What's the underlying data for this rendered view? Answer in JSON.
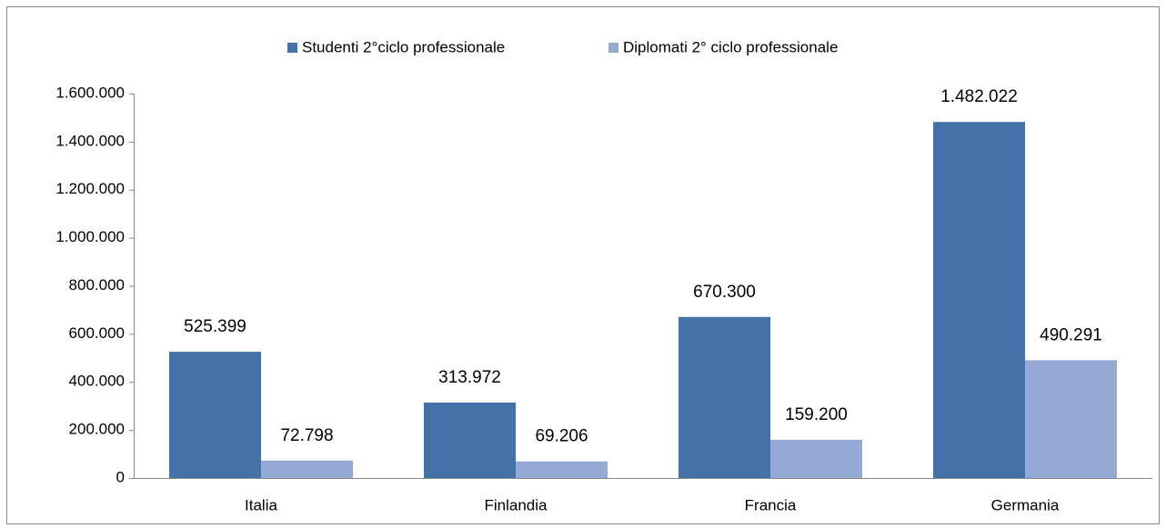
{
  "chart_data": {
    "type": "bar",
    "categories": [
      "Italia",
      "Finlandia",
      "Francia",
      "Germania"
    ],
    "series": [
      {
        "name": "Studenti 2°ciclo professionale",
        "color": "#4472a8",
        "values": [
          525399,
          313972,
          670300,
          1482022
        ],
        "value_labels": [
          "525.399",
          "313.972",
          "670.300",
          "1.482.022"
        ]
      },
      {
        "name": "Diplomati 2° ciclo professionale",
        "color": "#94aad4",
        "values": [
          72798,
          69206,
          159200,
          490291
        ],
        "value_labels": [
          "72.798",
          "69.206",
          "159.200",
          "490.291"
        ]
      }
    ],
    "ylim": [
      0,
      1600000
    ],
    "yticks": [
      0,
      {
        "value": 200000,
        "label": "200.000"
      },
      {
        "value": 400000,
        "label": "400.000"
      },
      {
        "value": 600000,
        "label": "600.000"
      },
      {
        "value": 800000,
        "label": "800.000"
      },
      {
        "value": 1000000,
        "label": "1.000.000"
      },
      {
        "value": 1200000,
        "label": "1.200.000"
      },
      {
        "value": 1400000,
        "label": "1.400.000"
      },
      {
        "value": 1600000,
        "label": "1.600.000"
      }
    ],
    "legend": "top",
    "grid": false
  }
}
